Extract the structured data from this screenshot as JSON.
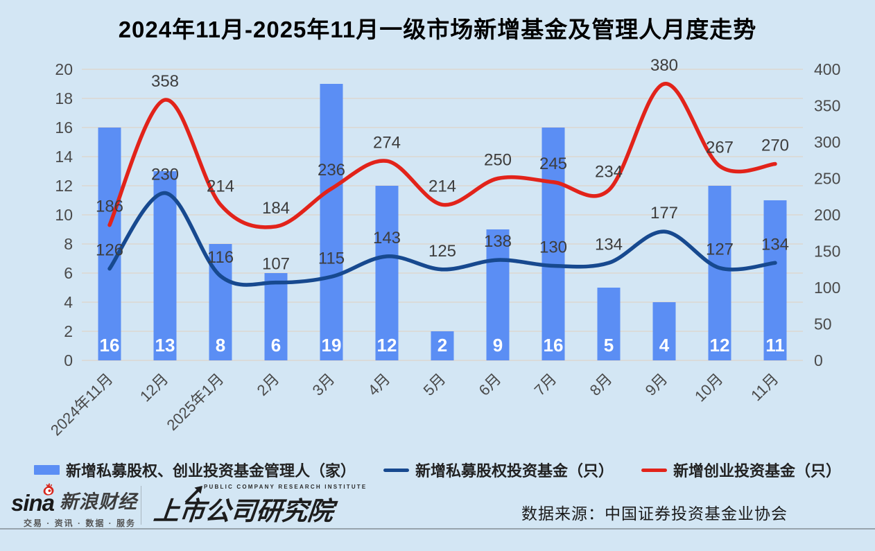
{
  "title": "2024年11月-2025年11月一级市场新增基金及管理人月度走势",
  "colors": {
    "background": "#D3E6F4",
    "grid": "#DCD7D0",
    "axis_text": "#4A4A4A",
    "data_label": "#3D3D3D",
    "bar_label": "#FFFFFF"
  },
  "chart_data": {
    "type": "bar",
    "subtype": "bar-line-combo",
    "categories": [
      "2024年11月",
      "12月",
      "2025年1月",
      "2月",
      "3月",
      "4月",
      "5月",
      "6月",
      "7月",
      "8月",
      "9月",
      "10月",
      "11月"
    ],
    "series": [
      {
        "name": "新增私募股权、创业投资基金管理人（家）",
        "type": "bar",
        "axis": "left",
        "color": "#5B8EF4",
        "values": [
          16,
          13,
          8,
          6,
          19,
          12,
          2,
          9,
          16,
          5,
          4,
          12,
          11
        ]
      },
      {
        "name": "新增私募股权投资基金（只）",
        "type": "line",
        "axis": "right",
        "color": "#17498F",
        "values": [
          126,
          230,
          116,
          107,
          115,
          143,
          125,
          138,
          130,
          134,
          177,
          127,
          134
        ]
      },
      {
        "name": "新增创业投资基金（只）",
        "type": "line",
        "axis": "right",
        "color": "#E2231A",
        "values": [
          186,
          358,
          214,
          184,
          236,
          274,
          214,
          250,
          245,
          234,
          380,
          267,
          270
        ]
      }
    ],
    "left_axis": {
      "min": 0,
      "max": 20,
      "step": 2
    },
    "right_axis": {
      "min": 0,
      "max": 400,
      "step": 50
    },
    "grid": true,
    "legend_position": "bottom",
    "x_label_rotation": -45
  },
  "footer": {
    "sina": {
      "wordmark": "sina",
      "name": "新浪财经",
      "tagline": "交易 · 资讯 · 数据 · 服务"
    },
    "institute": {
      "en": "PUBLIC COMPANY RESEARCH INSTITUTE",
      "cn": "上市公司研究院"
    },
    "source": "数据来源：中国证券投资基金业协会"
  }
}
